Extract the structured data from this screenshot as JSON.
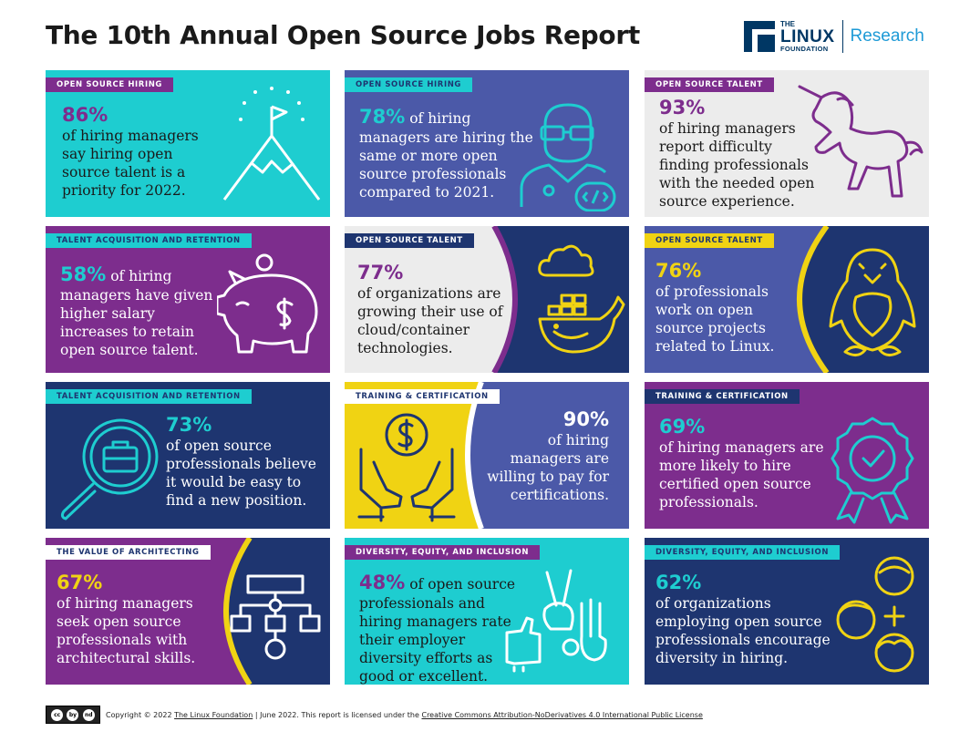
{
  "title": "The 10th Annual Open Source Jobs Report",
  "logo": {
    "line1": "THE",
    "line2": "LINUX",
    "line3": "FOUNDATION",
    "research": "Research"
  },
  "cards": [
    {
      "tag": "OPEN SOURCE HIRING",
      "pct": "86%",
      "text": "of hiring managers say hiring open source talent is a priority for 2022.",
      "icon": "mountain-flag-icon"
    },
    {
      "tag": "OPEN SOURCE HIRING",
      "pct": "78%",
      "text": "of hiring managers are hiring the same or more open source professionals compared to 2021.",
      "icon": "developer-icon"
    },
    {
      "tag": "OPEN SOURCE TALENT",
      "pct": "93%",
      "text": "of hiring managers report difficulty finding professionals with the needed open source experience.",
      "icon": "unicorn-icon"
    },
    {
      "tag": "TALENT ACQUISITION AND RETENTION",
      "pct": "58%",
      "text": "of hiring managers have given higher salary increases to retain open source talent.",
      "icon": "piggy-bank-icon"
    },
    {
      "tag": "OPEN SOURCE TALENT",
      "pct": "77%",
      "text": "of organizations are growing their use of cloud/container technologies.",
      "icon": "cloud-container-icon"
    },
    {
      "tag": "OPEN SOURCE TALENT",
      "pct": "76%",
      "text": "of professionals work on open source projects related to Linux.",
      "icon": "penguin-icon"
    },
    {
      "tag": "TALENT ACQUISITION AND RETENTION",
      "pct": "73%",
      "text": "of open source professionals believe it would be easy to find a new position.",
      "icon": "job-search-icon"
    },
    {
      "tag": "TRAINING & CERTIFICATION",
      "pct": "90%",
      "text": "of hiring managers are willing to pay for certifications.",
      "icon": "hands-money-icon"
    },
    {
      "tag": "TRAINING & CERTIFICATION",
      "pct": "69%",
      "text": "of hiring managers are more likely to hire certified open source professionals.",
      "icon": "certificate-badge-icon"
    },
    {
      "tag": "THE VALUE OF ARCHITECTING",
      "pct": "67%",
      "text": "of hiring managers seek open source professionals with architectural skills.",
      "icon": "architecture-diagram-icon"
    },
    {
      "tag": "DIVERSITY, EQUITY, AND INCLUSION",
      "pct": "48%",
      "text": "of open source professionals and hiring managers rate their employer diversity efforts as good or excellent.",
      "icon": "hand-gestures-icon"
    },
    {
      "tag": "DIVERSITY, EQUITY, AND INCLUSION",
      "pct": "62%",
      "text": "of organizations employing open source professionals encourage diversity in hiring.",
      "icon": "diverse-people-icon"
    }
  ],
  "footer": {
    "cc_labels": [
      "cc",
      "by",
      "nd"
    ],
    "copyright": "Copyright © 2022",
    "org": "The Linux Foundation",
    "date": "| June 2022. This report is licensed under the",
    "license": "Creative Commons Attribution-NoDerivatives 4.0 International Public License"
  }
}
